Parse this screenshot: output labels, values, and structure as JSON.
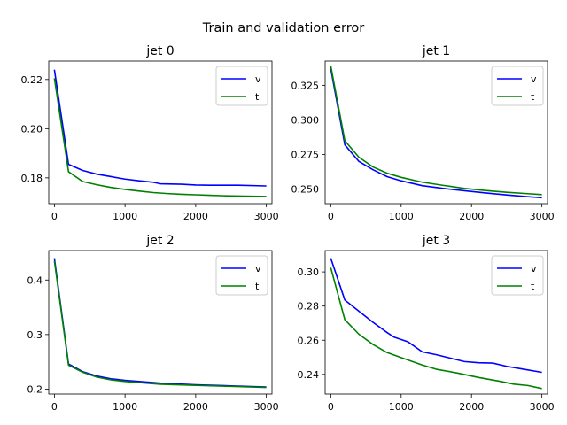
{
  "suptitle": "Train and validation error",
  "chart_data": [
    {
      "type": "line",
      "title": "jet 0",
      "xlabel": "",
      "ylabel": "",
      "xlim": [
        -80,
        3080
      ],
      "ylim": [
        0.1695,
        0.2275
      ],
      "xticks": [
        0,
        1000,
        2000,
        3000
      ],
      "xtick_labels": [
        "0",
        "1000",
        "2000",
        "3000"
      ],
      "yticks": [
        0.18,
        0.2,
        0.22
      ],
      "ytick_labels": [
        "0.18",
        "0.20",
        "0.22"
      ],
      "grid": false,
      "legend": "top-right",
      "series": [
        {
          "name": "v",
          "color": "#0000ff",
          "x": [
            0,
            200,
            400,
            600,
            800,
            1000,
            1200,
            1400,
            1500,
            1800,
            2000,
            2200,
            2600,
            3000
          ],
          "y": [
            0.224,
            0.1855,
            0.183,
            0.1815,
            0.1805,
            0.1795,
            0.1788,
            0.1782,
            0.1776,
            0.1774,
            0.1771,
            0.177,
            0.177,
            0.1767
          ]
        },
        {
          "name": "t",
          "color": "#008000",
          "x": [
            0,
            200,
            400,
            600,
            800,
            1000,
            1200,
            1400,
            1600,
            1800,
            2000,
            2200,
            2400,
            2600,
            2800,
            3000
          ],
          "y": [
            0.2205,
            0.1825,
            0.1785,
            0.1772,
            0.1761,
            0.1753,
            0.1746,
            0.174,
            0.1736,
            0.1733,
            0.1731,
            0.1729,
            0.1727,
            0.1726,
            0.1725,
            0.1724
          ]
        }
      ]
    },
    {
      "type": "line",
      "title": "jet 1",
      "xlabel": "",
      "ylabel": "",
      "xlim": [
        -80,
        3080
      ],
      "ylim": [
        0.2395,
        0.3425
      ],
      "xticks": [
        0,
        1000,
        2000,
        3000
      ],
      "xtick_labels": [
        "0",
        "1000",
        "2000",
        "3000"
      ],
      "yticks": [
        0.25,
        0.275,
        0.3,
        0.325
      ],
      "ytick_labels": [
        "0.250",
        "0.275",
        "0.300",
        "0.325"
      ],
      "grid": false,
      "legend": "top-right",
      "series": [
        {
          "name": "v",
          "color": "#0000ff",
          "x": [
            0,
            200,
            400,
            600,
            800,
            1000,
            1300,
            1600,
            1900,
            2200,
            2500,
            2800,
            3000
          ],
          "y": [
            0.337,
            0.282,
            0.27,
            0.264,
            0.259,
            0.256,
            0.2525,
            0.2505,
            0.2488,
            0.2472,
            0.2458,
            0.2445,
            0.2438
          ]
        },
        {
          "name": "t",
          "color": "#008000",
          "x": [
            0,
            200,
            400,
            600,
            800,
            1000,
            1300,
            1600,
            1900,
            2200,
            2500,
            2800,
            3000
          ],
          "y": [
            0.339,
            0.285,
            0.273,
            0.266,
            0.2615,
            0.2585,
            0.255,
            0.2527,
            0.2505,
            0.249,
            0.2477,
            0.2467,
            0.246
          ]
        }
      ]
    },
    {
      "type": "line",
      "title": "jet 2",
      "xlabel": "",
      "ylabel": "",
      "xlim": [
        -80,
        3080
      ],
      "ylim": [
        0.191,
        0.454
      ],
      "xticks": [
        0,
        1000,
        2000,
        3000
      ],
      "xtick_labels": [
        "0",
        "1000",
        "2000",
        "3000"
      ],
      "yticks": [
        0.2,
        0.3,
        0.4
      ],
      "ytick_labels": [
        "0.2",
        "0.3",
        "0.4"
      ],
      "grid": false,
      "legend": "top-right",
      "series": [
        {
          "name": "v",
          "color": "#0000ff",
          "x": [
            0,
            200,
            400,
            600,
            800,
            1000,
            1500,
            2000,
            2500,
            3000
          ],
          "y": [
            0.44,
            0.246,
            0.232,
            0.224,
            0.219,
            0.216,
            0.211,
            0.208,
            0.206,
            0.204
          ]
        },
        {
          "name": "t",
          "color": "#008000",
          "x": [
            0,
            200,
            400,
            600,
            800,
            1000,
            1500,
            2000,
            2500,
            3000
          ],
          "y": [
            0.435,
            0.244,
            0.231,
            0.222,
            0.217,
            0.214,
            0.209,
            0.207,
            0.205,
            0.203
          ]
        }
      ]
    },
    {
      "type": "line",
      "title": "jet 3",
      "xlabel": "",
      "ylabel": "",
      "xlim": [
        -80,
        3080
      ],
      "ylim": [
        0.2285,
        0.3125
      ],
      "xticks": [
        0,
        1000,
        2000,
        3000
      ],
      "xtick_labels": [
        "0",
        "1000",
        "2000",
        "3000"
      ],
      "yticks": [
        0.24,
        0.26,
        0.28,
        0.3
      ],
      "ytick_labels": [
        "0.24",
        "0.26",
        "0.28",
        "0.30"
      ],
      "grid": false,
      "legend": "top-right",
      "series": [
        {
          "name": "v",
          "color": "#0000ff",
          "x": [
            0,
            200,
            400,
            600,
            800,
            900,
            1100,
            1300,
            1500,
            1700,
            1900,
            2100,
            2300,
            2500,
            2700,
            3000
          ],
          "y": [
            0.308,
            0.2835,
            0.277,
            0.2705,
            0.2645,
            0.2618,
            0.259,
            0.2532,
            0.2515,
            0.2495,
            0.2475,
            0.2468,
            0.2466,
            0.2447,
            0.2433,
            0.2412
          ]
        },
        {
          "name": "t",
          "color": "#008000",
          "x": [
            0,
            200,
            400,
            600,
            800,
            1000,
            1300,
            1500,
            1800,
            2100,
            2400,
            2600,
            2800,
            3000
          ],
          "y": [
            0.3025,
            0.272,
            0.2635,
            0.2575,
            0.2528,
            0.2498,
            0.2455,
            0.243,
            0.2408,
            0.2382,
            0.236,
            0.2343,
            0.2335,
            0.2317
          ]
        }
      ]
    }
  ]
}
